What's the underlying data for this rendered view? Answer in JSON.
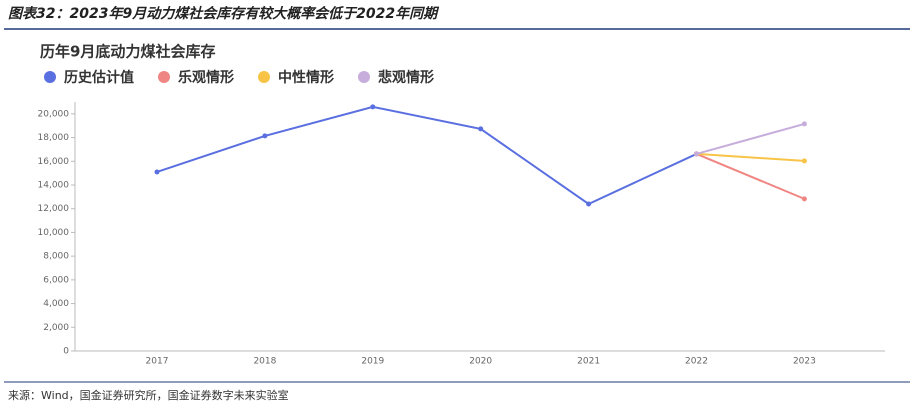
{
  "figure_title": "图表32：2023年9月动力煤社会库存有较大概率会低于2022年同期",
  "source": "来源：Wind，国金证券研究所，国金证券数字未来实验室",
  "chart_data": {
    "type": "line",
    "title": "历年9月底动力煤社会库存",
    "categories": [
      "2017",
      "2018",
      "2019",
      "2020",
      "2021",
      "2022",
      "2023"
    ],
    "series": [
      {
        "name": "历史估计值",
        "color": "#5a6fe0",
        "values": [
          15100,
          18140,
          20590,
          18730,
          12400,
          16620,
          null
        ]
      },
      {
        "name": "乐观情形",
        "color": "#f08683",
        "values": [
          null,
          null,
          null,
          null,
          null,
          16620,
          12830
        ]
      },
      {
        "name": "中性情形",
        "color": "#f8c447",
        "values": [
          null,
          null,
          null,
          null,
          null,
          16620,
          16030
        ]
      },
      {
        "name": "悲观情形",
        "color": "#c6addb",
        "values": [
          null,
          null,
          null,
          null,
          null,
          16620,
          19150
        ]
      }
    ],
    "ylim": [
      0,
      21000
    ],
    "yticks": [
      0,
      {
        "value": 2000,
        "label": "2,000"
      },
      {
        "value": 4000,
        "label": "4,000"
      },
      {
        "value": 6000,
        "label": "6,000"
      },
      {
        "value": 8000,
        "label": "8,000"
      },
      {
        "value": 10000,
        "label": "10,000"
      },
      {
        "value": 12000,
        "label": "12,000"
      },
      {
        "value": 14000,
        "label": "14,000"
      },
      {
        "value": 16000,
        "label": "16,000"
      },
      {
        "value": 18000,
        "label": "18,000"
      },
      {
        "value": 20000,
        "label": "20,000"
      }
    ],
    "legend": "top-left"
  }
}
